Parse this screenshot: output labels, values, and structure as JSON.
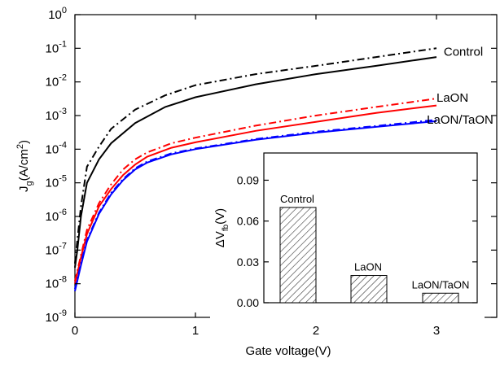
{
  "chart_data": [
    {
      "type": "line",
      "xlabel": "Gate voltage(V)",
      "ylabel": "J_g(A/cm^2)",
      "ylabel_parts": {
        "main": "J",
        "sub": "g",
        "mid": "(A/cm",
        "sup": "2",
        "end": ")"
      },
      "xlim": [
        0,
        3.5
      ],
      "ylim_log10": [
        -9,
        0
      ],
      "y_scale": "log",
      "x_ticks": [
        0,
        1,
        2,
        3
      ],
      "x_tick_labels": [
        "0",
        "1",
        "2",
        "3"
      ],
      "y_tick_exponents": [
        0,
        -1,
        -2,
        -3,
        -4,
        -5,
        -6,
        -7,
        -8,
        -9
      ],
      "series": [
        {
          "name": "Control",
          "color": "#000000",
          "style": "solid",
          "x": [
            0,
            0.02,
            0.05,
            0.1,
            0.2,
            0.3,
            0.5,
            0.75,
            1,
            1.5,
            2,
            2.5,
            3
          ],
          "y": [
            3e-08,
            1e-07,
            1e-06,
            1e-05,
            5e-05,
            0.00015,
            0.0006,
            0.0018,
            0.0035,
            0.0085,
            0.017,
            0.03,
            0.055
          ]
        },
        {
          "name": "",
          "color": "#000000",
          "style": "dashdot",
          "x": [
            0,
            0.02,
            0.05,
            0.1,
            0.2,
            0.3,
            0.5,
            0.75,
            1,
            1.5,
            2,
            2.5,
            3
          ],
          "y": [
            4e-08,
            2e-07,
            2e-06,
            3e-05,
            0.00012,
            0.0004,
            0.0015,
            0.004,
            0.008,
            0.017,
            0.03,
            0.055,
            0.1
          ]
        },
        {
          "name": "LaON",
          "color": "#ff0000",
          "style": "solid",
          "x": [
            0,
            0.05,
            0.1,
            0.2,
            0.3,
            0.4,
            0.5,
            0.6,
            0.8,
            1,
            1.5,
            2,
            2.5,
            3
          ],
          "y": [
            1e-08,
            6e-08,
            3e-07,
            2e-06,
            6.5e-06,
            1.7e-05,
            3.5e-05,
            6e-05,
            0.00011,
            0.00016,
            0.00035,
            0.00065,
            0.0012,
            0.002
          ]
        },
        {
          "name": "",
          "color": "#ff0000",
          "style": "dashdot",
          "x": [
            0,
            0.05,
            0.1,
            0.2,
            0.3,
            0.4,
            0.5,
            0.6,
            0.8,
            1,
            1.5,
            2,
            2.5,
            3
          ],
          "y": [
            1.2e-08,
            7e-08,
            4e-07,
            2.5e-06,
            9e-06,
            2.5e-05,
            5e-05,
            8e-05,
            0.00015,
            0.00022,
            0.0005,
            0.001,
            0.0018,
            0.0032
          ]
        },
        {
          "name": "LaON/TaON",
          "color": "#0000ff",
          "style": "solid",
          "x": [
            0,
            0.05,
            0.1,
            0.2,
            0.3,
            0.4,
            0.5,
            0.6,
            0.8,
            1,
            1.5,
            2,
            2.5,
            3
          ],
          "y": [
            6e-09,
            3.5e-08,
            1.8e-07,
            1.2e-06,
            4.5e-06,
            1.2e-05,
            2.5e-05,
            4e-05,
            7e-05,
            0.0001,
            0.00019,
            0.00031,
            0.00046,
            0.00068
          ]
        },
        {
          "name": "",
          "color": "#0000ff",
          "style": "dashdot",
          "x": [
            0,
            0.05,
            0.1,
            0.2,
            0.3,
            0.4,
            0.5,
            0.6,
            0.8,
            1,
            1.5,
            2,
            2.5,
            3
          ],
          "y": [
            7e-09,
            4e-08,
            2e-07,
            1.3e-06,
            5e-06,
            1.3e-05,
            2.7e-05,
            4.3e-05,
            7.5e-05,
            0.000105,
            0.0002,
            0.00033,
            0.00049,
            0.00075
          ]
        }
      ]
    },
    {
      "type": "bar",
      "inset": true,
      "ylabel": "ΔV_fb(V)",
      "ylabel_parts": {
        "main": "ΔV",
        "sub": "fb",
        "end": "(V)"
      },
      "ylim": [
        0,
        0.11
      ],
      "y_ticks": [
        0.0,
        0.03,
        0.06,
        0.09
      ],
      "y_tick_labels": [
        "0.00",
        "0.03",
        "0.06",
        "0.09"
      ],
      "categories": [
        "Control",
        "LaON",
        "LaON/TaON"
      ],
      "values": [
        0.07,
        0.02,
        0.007
      ],
      "fill": "hatched"
    }
  ]
}
